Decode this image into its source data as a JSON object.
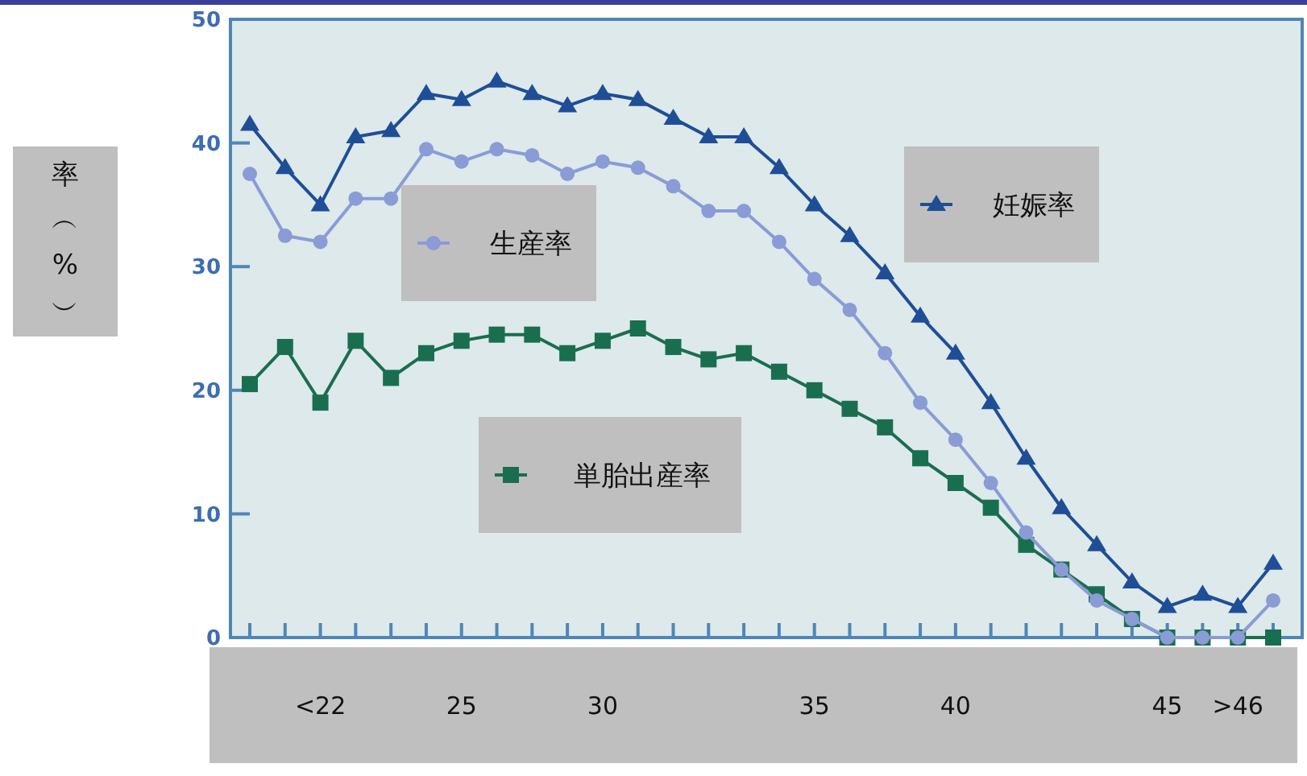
{
  "chart_data": {
    "type": "line",
    "ylabel": "率︵%︶",
    "categories": [
      null,
      null,
      "<22",
      null,
      null,
      null,
      "25",
      null,
      null,
      null,
      "30",
      null,
      null,
      null,
      null,
      null,
      "35",
      null,
      null,
      null,
      "40",
      null,
      null,
      null,
      null,
      null,
      "45",
      null,
      ">46",
      null
    ],
    "series": [
      {
        "name": "妊娠率",
        "color": "#1f4e96",
        "marker": "triangle",
        "values": [
          41.5,
          38,
          35,
          40.5,
          41,
          44,
          43.5,
          45,
          44,
          43,
          44,
          43.5,
          42,
          40.5,
          40.5,
          38,
          35,
          32.5,
          29.5,
          26,
          23,
          19,
          14.5,
          10.5,
          7.5,
          4.5,
          2.5,
          3.5,
          2.5,
          6
        ]
      },
      {
        "name": "生産率",
        "color": "#8a9bd6",
        "marker": "circle",
        "values": [
          37.5,
          32.5,
          32,
          35.5,
          35.5,
          39.5,
          38.5,
          39.5,
          39,
          37.5,
          38.5,
          38,
          36.5,
          34.5,
          34.5,
          32,
          29,
          26.5,
          23,
          19,
          16,
          12.5,
          8.5,
          5.5,
          3,
          1.5,
          0,
          0,
          0,
          3
        ]
      },
      {
        "name": "単胎出産率",
        "color": "#1a6e50",
        "marker": "square",
        "values": [
          20.5,
          23.5,
          19,
          24,
          21,
          23,
          24,
          24.5,
          24.5,
          23,
          24,
          25,
          23.5,
          22.5,
          23,
          21.5,
          20,
          18.5,
          17,
          14.5,
          12.5,
          10.5,
          7.5,
          5.5,
          3.5,
          1.5,
          0,
          0,
          0,
          0
        ]
      }
    ],
    "ylim": [
      0,
      50
    ],
    "yticks": [
      0,
      10,
      20,
      30,
      40,
      50
    ],
    "grid": false,
    "legend": "bottom left",
    "line_style": "solid"
  }
}
